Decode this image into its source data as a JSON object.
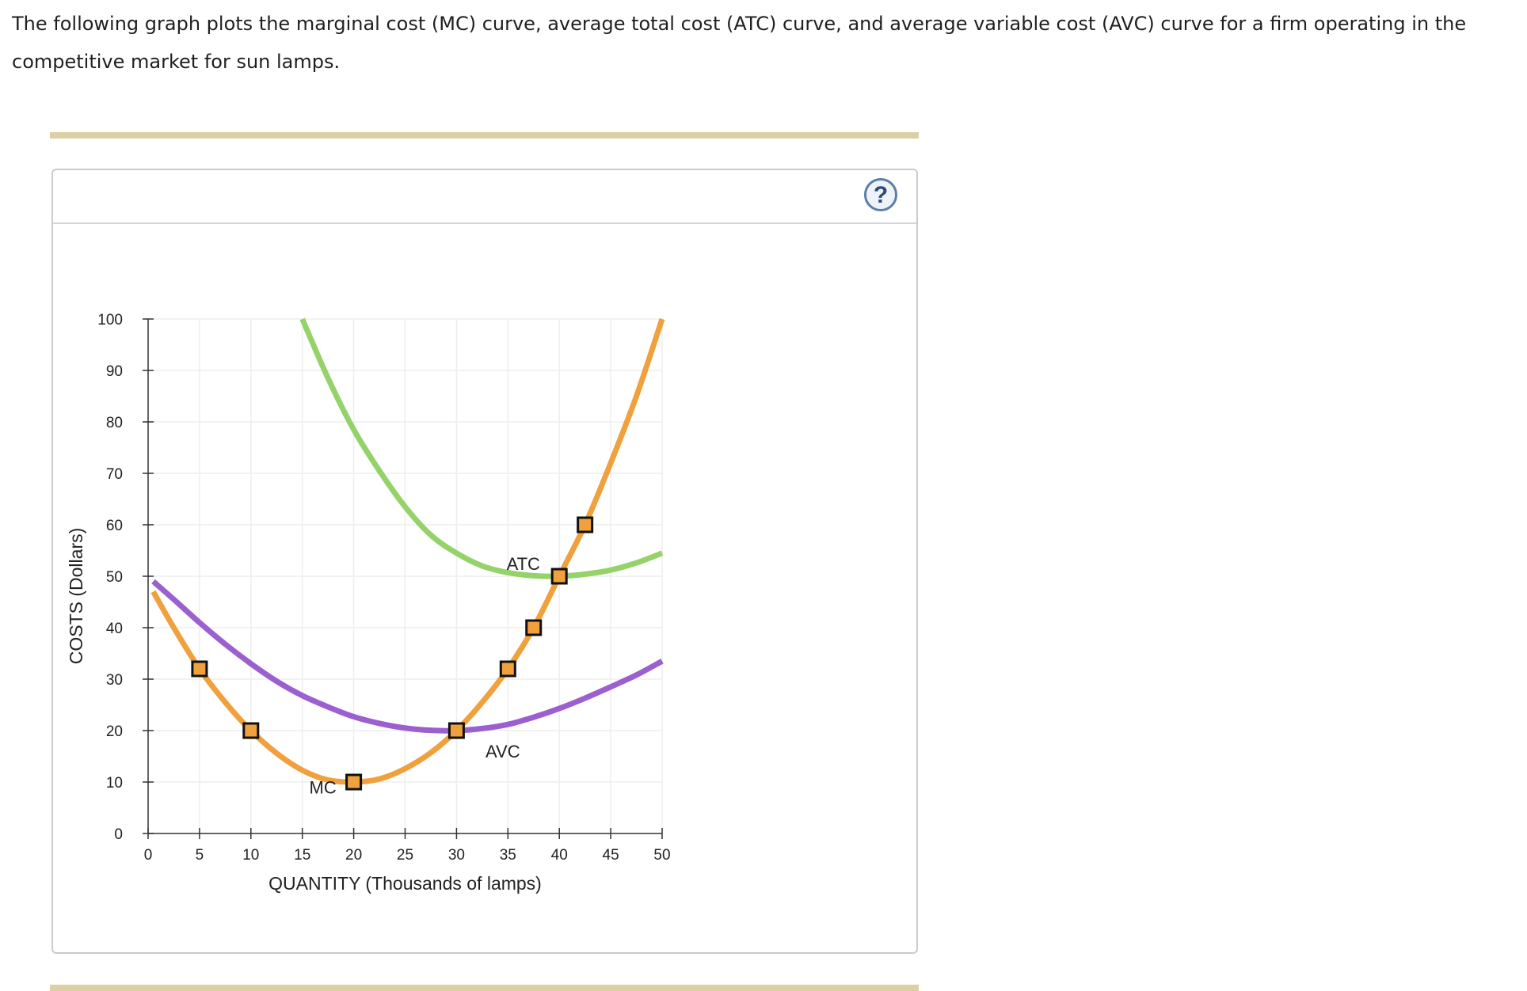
{
  "intro_text": "The following graph plots the marginal cost (MC) curve, average total cost (ATC) curve, and average variable cost (AVC) curve for a firm operating in the competitive market for sun lamps.",
  "help_glyph": "?",
  "colors": {
    "mc": "#f0a03c",
    "atc": "#95d36a",
    "avc": "#9b5fcf",
    "marker_fill": "#f0a03c",
    "marker_stroke": "#111111",
    "grid": "#eeeeee",
    "axis": "#333333",
    "rule": "#dccfa6"
  },
  "chart_data": {
    "type": "line",
    "xlabel": "QUANTITY (Thousands of lamps)",
    "ylabel": "COSTS (Dollars)",
    "xlim": [
      0,
      50
    ],
    "ylim": [
      0,
      100
    ],
    "x_ticks": [
      0,
      5,
      10,
      15,
      20,
      25,
      30,
      35,
      40,
      45,
      50
    ],
    "y_ticks": [
      0,
      10,
      20,
      30,
      40,
      50,
      60,
      70,
      80,
      90,
      100
    ],
    "grid": true,
    "series": [
      {
        "name": "MC",
        "color_key": "mc",
        "points": [
          [
            0.5,
            47
          ],
          [
            2.5,
            40
          ],
          [
            5,
            32
          ],
          [
            7.5,
            25.5
          ],
          [
            10,
            20
          ],
          [
            12.5,
            15.6
          ],
          [
            15,
            12.3
          ],
          [
            17.5,
            10.4
          ],
          [
            20,
            10
          ],
          [
            22.5,
            10.6
          ],
          [
            25,
            12.6
          ],
          [
            27.5,
            15.7
          ],
          [
            30,
            20
          ],
          [
            32.5,
            25.5
          ],
          [
            35,
            32
          ],
          [
            37.5,
            40
          ],
          [
            40,
            50
          ],
          [
            42.5,
            60
          ],
          [
            45,
            72
          ],
          [
            47.5,
            85
          ],
          [
            50,
            100
          ]
        ],
        "markers": [
          [
            5,
            32
          ],
          [
            10,
            20
          ],
          [
            20,
            10
          ],
          [
            30,
            20
          ],
          [
            35,
            32
          ],
          [
            37.5,
            40
          ],
          [
            40,
            50
          ],
          [
            42.5,
            60
          ]
        ],
        "label": "MC",
        "label_at": [
          17,
          9
        ]
      },
      {
        "name": "ATC",
        "color_key": "atc",
        "points": [
          [
            15,
            100
          ],
          [
            17.5,
            88.5
          ],
          [
            20,
            78.5
          ],
          [
            22.5,
            70.5
          ],
          [
            25,
            63.5
          ],
          [
            27.5,
            58
          ],
          [
            30,
            54.5
          ],
          [
            32.5,
            52
          ],
          [
            35,
            50.7
          ],
          [
            37.5,
            50.1
          ],
          [
            40,
            50
          ],
          [
            42.5,
            50.4
          ],
          [
            45,
            51.2
          ],
          [
            47.5,
            52.6
          ],
          [
            50,
            54.5
          ]
        ],
        "label": "ATC",
        "label_at": [
          36.5,
          52.5
        ]
      },
      {
        "name": "AVC",
        "color_key": "avc",
        "points": [
          [
            0.5,
            49
          ],
          [
            2.5,
            45.5
          ],
          [
            5,
            41
          ],
          [
            7.5,
            36.8
          ],
          [
            10,
            33
          ],
          [
            12.5,
            29.6
          ],
          [
            15,
            26.8
          ],
          [
            17.5,
            24.6
          ],
          [
            20,
            22.7
          ],
          [
            22.5,
            21.4
          ],
          [
            25,
            20.5
          ],
          [
            27.5,
            20.05
          ],
          [
            30,
            20
          ],
          [
            32.5,
            20.4
          ],
          [
            35,
            21.2
          ],
          [
            37.5,
            22.6
          ],
          [
            40,
            24.3
          ],
          [
            42.5,
            26.3
          ],
          [
            45,
            28.5
          ],
          [
            47.5,
            30.8
          ],
          [
            50,
            33.5
          ]
        ],
        "label": "AVC",
        "label_at": [
          34.5,
          16
        ]
      }
    ]
  }
}
